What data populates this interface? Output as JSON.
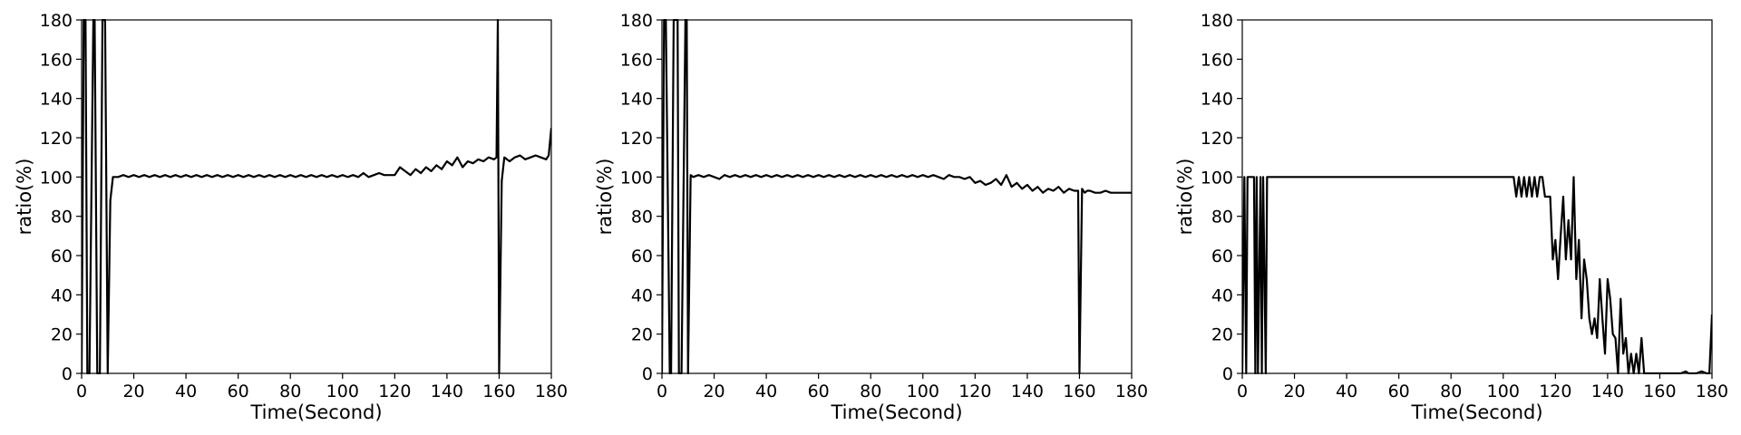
{
  "chart_data": [
    {
      "type": "line",
      "xlabel": "Time(Second)",
      "ylabel": "ratio(%)",
      "xlim": [
        0,
        180
      ],
      "ylim": [
        0,
        180
      ],
      "xticks": [
        0,
        20,
        40,
        60,
        80,
        100,
        120,
        140,
        160,
        180
      ],
      "yticks": [
        0,
        20,
        40,
        60,
        80,
        100,
        120,
        140,
        160,
        180
      ],
      "grid": false,
      "color": "#000000",
      "series": [
        {
          "x": [
            0,
            0.8,
            1.5,
            2.2,
            3,
            4.5,
            5,
            6,
            7,
            8,
            9,
            10,
            11,
            12,
            14,
            16,
            18,
            20,
            22,
            24,
            26,
            28,
            30,
            32,
            34,
            36,
            38,
            40,
            42,
            44,
            46,
            48,
            50,
            52,
            54,
            56,
            58,
            60,
            62,
            64,
            66,
            68,
            70,
            72,
            74,
            76,
            78,
            80,
            82,
            84,
            86,
            88,
            90,
            92,
            94,
            96,
            98,
            100,
            102,
            104,
            106,
            108,
            110,
            112,
            114,
            116,
            118,
            120,
            122,
            124,
            126,
            128,
            130,
            132,
            134,
            136,
            138,
            140,
            142,
            144,
            146,
            148,
            150,
            152,
            154,
            156,
            158,
            159,
            159.5,
            160,
            161,
            162,
            164,
            166,
            168,
            170,
            172,
            174,
            176,
            178,
            179,
            180
          ],
          "y": [
            0,
            180,
            180,
            0,
            0,
            180,
            180,
            0,
            0,
            180,
            180,
            0,
            88,
            100,
            100,
            101,
            100,
            101,
            100,
            101,
            100,
            101,
            100,
            101,
            100,
            101,
            100,
            101,
            100,
            101,
            100,
            101,
            100,
            101,
            100,
            101,
            100,
            101,
            100,
            101,
            100,
            101,
            100,
            101,
            100,
            101,
            100,
            101,
            100,
            101,
            100,
            101,
            100,
            101,
            100,
            101,
            100,
            101,
            100,
            101,
            100,
            102,
            100,
            101,
            102,
            101,
            101,
            101,
            105,
            103,
            101,
            104,
            102,
            105,
            103,
            106,
            104,
            108,
            106,
            110,
            105,
            108,
            107,
            109,
            108,
            110,
            109,
            110,
            180,
            0,
            98,
            110,
            108,
            110,
            111,
            109,
            110,
            111,
            110,
            109,
            111,
            125
          ]
        }
      ]
    },
    {
      "type": "line",
      "xlabel": "Time(Second)",
      "ylabel": "ratio(%)",
      "xlim": [
        0,
        180
      ],
      "ylim": [
        0,
        180
      ],
      "xticks": [
        0,
        20,
        40,
        60,
        80,
        100,
        120,
        140,
        160,
        180
      ],
      "yticks": [
        0,
        20,
        40,
        60,
        80,
        100,
        120,
        140,
        160,
        180
      ],
      "grid": false,
      "color": "#000000",
      "series": [
        {
          "x": [
            0,
            0.8,
            1.5,
            3,
            3.5,
            4.5,
            6,
            6.5,
            7.5,
            9,
            9.5,
            10,
            11,
            12,
            14,
            16,
            18,
            20,
            22,
            24,
            26,
            28,
            30,
            32,
            34,
            36,
            38,
            40,
            42,
            44,
            46,
            48,
            50,
            52,
            54,
            56,
            58,
            60,
            62,
            64,
            66,
            68,
            70,
            72,
            74,
            76,
            78,
            80,
            82,
            84,
            86,
            88,
            90,
            92,
            94,
            96,
            98,
            100,
            102,
            104,
            106,
            108,
            110,
            112,
            114,
            116,
            118,
            120,
            122,
            124,
            126,
            128,
            130,
            132,
            134,
            136,
            138,
            140,
            142,
            144,
            146,
            148,
            150,
            152,
            154,
            156,
            158,
            159.5,
            160,
            161,
            162,
            163,
            164,
            166,
            168,
            170,
            172,
            174,
            176,
            178,
            180
          ],
          "y": [
            0,
            180,
            180,
            0,
            0,
            180,
            180,
            0,
            0,
            180,
            180,
            0,
            101,
            100,
            101,
            100,
            101,
            100,
            99,
            101,
            100,
            101,
            100,
            101,
            100,
            101,
            100,
            101,
            100,
            101,
            100,
            101,
            100,
            101,
            100,
            101,
            100,
            101,
            100,
            101,
            100,
            101,
            100,
            101,
            100,
            101,
            100,
            101,
            100,
            101,
            100,
            101,
            100,
            101,
            100,
            101,
            100,
            101,
            100,
            101,
            100,
            99,
            101,
            100,
            100,
            99,
            100,
            97,
            98,
            96,
            97,
            99,
            96,
            101,
            95,
            97,
            94,
            96,
            93,
            95,
            92,
            94,
            93,
            95,
            92,
            94,
            93,
            93,
            0,
            94,
            92,
            93,
            93,
            92,
            92,
            93,
            92,
            92,
            92,
            92,
            92
          ]
        }
      ]
    },
    {
      "type": "line",
      "xlabel": "Time(Second)",
      "ylabel": "ratio(%)",
      "xlim": [
        0,
        180
      ],
      "ylim": [
        0,
        180
      ],
      "xticks": [
        0,
        20,
        40,
        60,
        80,
        100,
        120,
        140,
        160,
        180
      ],
      "yticks": [
        0,
        20,
        40,
        60,
        80,
        100,
        120,
        140,
        160,
        180
      ],
      "grid": false,
      "color": "#000000",
      "series": [
        {
          "x": [
            0,
            0.8,
            1.5,
            2,
            2.5,
            3,
            3.5,
            4.5,
            5,
            5.5,
            6,
            7,
            7.5,
            8,
            9,
            9.5,
            10,
            11,
            20,
            30,
            40,
            50,
            60,
            70,
            80,
            90,
            100,
            104,
            105,
            106,
            107,
            108,
            109,
            110,
            111,
            112,
            113,
            114,
            115,
            116,
            117,
            118,
            119,
            120,
            121,
            122,
            123,
            124,
            125,
            126,
            127,
            128,
            129,
            130,
            131,
            132,
            133,
            134,
            135,
            136,
            137,
            138,
            139,
            140,
            141,
            142,
            143,
            144,
            145,
            146,
            147,
            148,
            149,
            150,
            151,
            152,
            153,
            154,
            155,
            156,
            157,
            158,
            159,
            160,
            161,
            162,
            163,
            164,
            165,
            166,
            168,
            170,
            171,
            172,
            174,
            176,
            178,
            179,
            180
          ],
          "y": [
            0,
            100,
            0,
            100,
            100,
            100,
            100,
            100,
            0,
            100,
            0,
            100,
            0,
            100,
            0,
            100,
            100,
            100,
            100,
            100,
            100,
            100,
            100,
            100,
            100,
            100,
            100,
            100,
            90,
            100,
            90,
            100,
            90,
            100,
            90,
            100,
            90,
            100,
            100,
            90,
            90,
            90,
            58,
            68,
            48,
            70,
            90,
            58,
            78,
            58,
            100,
            48,
            68,
            28,
            58,
            48,
            28,
            20,
            28,
            18,
            48,
            28,
            10,
            48,
            38,
            20,
            18,
            0,
            38,
            10,
            18,
            0,
            10,
            0,
            10,
            0,
            18,
            0,
            0,
            0,
            0,
            0,
            0,
            0,
            0,
            0,
            0,
            0,
            0,
            0,
            0,
            1,
            0,
            0,
            0,
            1,
            0,
            0,
            30
          ]
        }
      ]
    }
  ]
}
